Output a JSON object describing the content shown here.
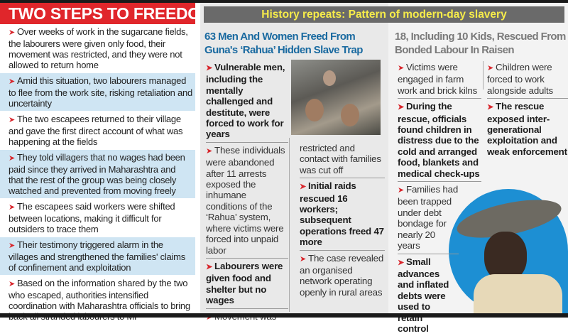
{
  "left": {
    "title": "TWO STEPS TO FREEDOM",
    "items": [
      "Over weeks of work in the sugarcane fields, the labourers were given only food, their movement was restricted, and they were not allowed to return home",
      "Amid this situation, two labourers managed to flee from the work site, risking retaliation and uncertainty",
      "The two escapees returned to their village and gave the first direct account of what was happening at the fields",
      "They told villagers that no wages had been paid since they arrived in Maharashtra and that the rest of the group was being closely watched and prevented from moving freely",
      "The escapees said workers were shifted between locations, making it difficult for outsiders to trace them",
      "Their testimony triggered alarm in the villages and strengthened the families' claims of confinement and exploitation",
      "Based on the information shared by the two who escaped, authorities intensified coordination with Maharashtra officials to bring back all stranded labourers to MP"
    ]
  },
  "right": {
    "title": "History repeats: Pattern of modern-day slavery",
    "guna": {
      "headline": "63 Men And Women Freed From Guna's ‘Rahua’ Hidden Slave Trap",
      "col1": [
        "Vulnerable men, including the mentally challenged and destitute, were forced to work for years",
        "These individuals were abandoned after 11 arrests exposed the inhumane conditions of the ‘Rahua’ system, where victims were forced into unpaid labor",
        "Labourers were given food and shelter but no wages",
        "Movement was"
      ],
      "col2": [
        "restricted and contact with families was cut off",
        "Initial raids rescued 16 workers; subsequent operations freed 47 more",
        "The case revealed an organised network operating openly in rural areas"
      ]
    },
    "raisen": {
      "headline": "18, Including 10 Kids, Rescued From Bonded Labour In Raisen",
      "col1": [
        "Victims were engaged in farm work and brick kilns",
        "During the rescue, officials found children in distress due to the cold and arranged food, blankets and medical check-ups",
        "Families had been trapped under debt bondage for nearly 20 years",
        "Small advances and inflated debts were used to retain control"
      ],
      "col2": [
        "Children were forced to work alongside adults",
        "The rescue exposed inter-generational exploitation and weak enforcement"
      ]
    }
  },
  "colors": {
    "red": "#e0262b",
    "blue_headline": "#1a6aa0",
    "yellow": "#f6ec4a",
    "circle_blue": "#1d8fd3"
  }
}
